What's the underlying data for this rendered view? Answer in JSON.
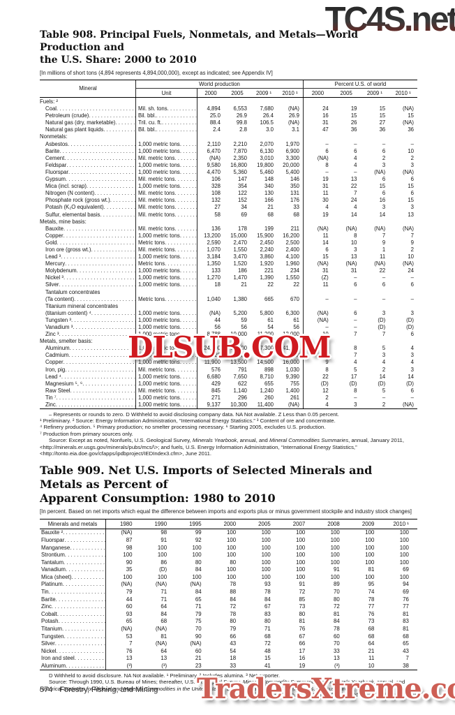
{
  "watermarks": {
    "top": "TC4S.net",
    "middle": "DLSUB.COM",
    "bottom": "TradersXtreme.com"
  },
  "table908": {
    "title_line1": "Table 908. Principal Fuels, Nonmetals, and Metals—World Production and",
    "title_line2": "the U.S. Share: 2000 to 2010",
    "note": "[In millions of short tons (4,894 represents 4,894,000,000), except as indicated; see Appendix IV]",
    "col_mineral": "Mineral",
    "col_unit": "Unit",
    "group_world": "World production",
    "group_pct": "Percent U.S. of world",
    "years": [
      "2000",
      "2005",
      "2009 ¹",
      "2010 ¹"
    ],
    "rows": [
      {
        "t": "s",
        "label": "Fuels: ²"
      },
      {
        "t": "d",
        "label": "Coal",
        "unit": "Mil. sh. tons",
        "w": [
          "4,894",
          "6,553",
          "7,680",
          "(NA)"
        ],
        "p": [
          "24",
          "19",
          "15",
          "(NA)"
        ]
      },
      {
        "t": "d",
        "label": "Petroleum (crude)",
        "unit": "Bil. bbl.",
        "w": [
          "25.0",
          "26.9",
          "26.4",
          "26.9"
        ],
        "p": [
          "16",
          "15",
          "15",
          "15"
        ]
      },
      {
        "t": "d",
        "label": "Natural gas (dry, marketable)",
        "unit": "Tril. cu. ft.",
        "w": [
          "88.4",
          "99.8",
          "106.5",
          "(NA)"
        ],
        "p": [
          "31",
          "26",
          "27",
          "(NA)"
        ]
      },
      {
        "t": "d",
        "label": "Natural gas plant liquids",
        "unit": "Bil. bbl.",
        "w": [
          "2.4",
          "2.8",
          "3.0",
          "3.1"
        ],
        "p": [
          "47",
          "36",
          "36",
          "36"
        ]
      },
      {
        "t": "s",
        "label": "Nonmetals:"
      },
      {
        "t": "d",
        "label": "Asbestos",
        "unit": "1,000 metric tons",
        "w": [
          "2,110",
          "2,210",
          "2,070",
          "1,970"
        ],
        "p": [
          "–",
          "–",
          "–",
          "–"
        ]
      },
      {
        "t": "d",
        "label": "Barite",
        "unit": "1,000 metric tons",
        "w": [
          "6,470",
          "7,870",
          "6,130",
          "6,900"
        ],
        "p": [
          "6",
          "6",
          "6",
          "10"
        ]
      },
      {
        "t": "d",
        "label": "Cement",
        "unit": "Mil. metric tons",
        "w": [
          "(NA)",
          "2,350",
          "3,010",
          "3,300"
        ],
        "p": [
          "(NA)",
          "4",
          "2",
          "2"
        ]
      },
      {
        "t": "d",
        "label": "Feldspar",
        "unit": "1,000 metric tons",
        "w": [
          "9,580",
          "16,800",
          "19,800",
          "20,000"
        ],
        "p": [
          "8",
          "4",
          "3",
          "3"
        ]
      },
      {
        "t": "d",
        "label": "Fluorspar",
        "unit": "1,000 metric tons",
        "w": [
          "4,470",
          "5,360",
          "5,460",
          "5,400"
        ],
        "p": [
          "–",
          "–",
          "(NA)",
          "(NA)"
        ]
      },
      {
        "t": "d",
        "label": "Gypsum",
        "unit": "Mil. metric tons",
        "w": [
          "106",
          "147",
          "148",
          "146"
        ],
        "p": [
          "19",
          "13",
          "6",
          "6"
        ]
      },
      {
        "t": "d",
        "label": "Mica (incl. scrap)",
        "unit": "1,000 metric tons",
        "w": [
          "328",
          "354",
          "340",
          "350"
        ],
        "p": [
          "31",
          "22",
          "15",
          "15"
        ]
      },
      {
        "t": "d",
        "label": "Nitrogen (N content)",
        "unit": "Mil. metric tons",
        "w": [
          "108",
          "122",
          "130",
          "131"
        ],
        "p": [
          "11",
          "7",
          "6",
          "6"
        ]
      },
      {
        "t": "d",
        "label": "Phosphate rock (gross wt.)",
        "unit": "Mil. metric tons",
        "w": [
          "132",
          "152",
          "166",
          "176"
        ],
        "p": [
          "30",
          "24",
          "16",
          "15"
        ]
      },
      {
        "t": "d",
        "label": "Potash (K₂O equivalent)",
        "unit": "Mil. metric tons",
        "w": [
          "27",
          "34",
          "21",
          "33"
        ],
        "p": [
          "4",
          "4",
          "3",
          "3"
        ]
      },
      {
        "t": "d",
        "label": "Sulfur, elemental basis",
        "unit": "Mil. metric tons",
        "w": [
          "58",
          "69",
          "68",
          "68"
        ],
        "p": [
          "19",
          "14",
          "14",
          "13"
        ]
      },
      {
        "t": "s",
        "label": "Metals, mine basis:"
      },
      {
        "t": "d",
        "label": "Bauxite",
        "unit": "Mil. metric tons",
        "w": [
          "136",
          "178",
          "199",
          "211"
        ],
        "p": [
          "(NA)",
          "(NA)",
          "(NA)",
          "(NA)"
        ]
      },
      {
        "t": "d",
        "label": "Copper",
        "unit": "1,000 metric tons",
        "w": [
          "13,200",
          "15,000",
          "15,900",
          "16,200"
        ],
        "p": [
          "11",
          "8",
          "7",
          "7"
        ]
      },
      {
        "t": "d",
        "label": "Gold",
        "unit": "Metric tons",
        "w": [
          "2,590",
          "2,470",
          "2,450",
          "2,500"
        ],
        "p": [
          "14",
          "10",
          "9",
          "9"
        ]
      },
      {
        "t": "d",
        "label": "Iron ore (gross wt.)",
        "unit": "Mil. metric tons",
        "w": [
          "1,070",
          "1,550",
          "2,240",
          "2,400"
        ],
        "p": [
          "6",
          "3",
          "1",
          "2"
        ]
      },
      {
        "t": "d",
        "label": "Lead ³",
        "unit": "1,000 metric tons",
        "w": [
          "3,184",
          "3,470",
          "3,860",
          "4,100"
        ],
        "p": [
          "15",
          "13",
          "11",
          "10"
        ]
      },
      {
        "t": "d",
        "label": "Mercury",
        "unit": "Metric tons",
        "w": [
          "1,350",
          "1,520",
          "1,920",
          "1,960"
        ],
        "p": [
          "(NA)",
          "(NA)",
          "(NA)",
          "(NA)"
        ]
      },
      {
        "t": "d",
        "label": "Molybdenum",
        "unit": "1,000 metric tons",
        "w": [
          "133",
          "186",
          "221",
          "234"
        ],
        "p": [
          "31",
          "31",
          "22",
          "24"
        ]
      },
      {
        "t": "d",
        "label": "Nickel ³",
        "unit": "1,000 metric tons",
        "w": [
          "1,270",
          "1,470",
          "1,390",
          "1,550"
        ],
        "p": [
          "(Z)",
          "–",
          "–",
          "–"
        ]
      },
      {
        "t": "d",
        "label": "Silver",
        "unit": "1,000 metric tons",
        "w": [
          "18",
          "21",
          "22",
          "22"
        ],
        "p": [
          "11",
          "6",
          "6",
          "6"
        ]
      },
      {
        "t": "l",
        "label": "Tantalum concentrates"
      },
      {
        "t": "d",
        "label": "(Ta content)",
        "unit": "Metric tons",
        "w": [
          "1,040",
          "1,380",
          "665",
          "670"
        ],
        "p": [
          "–",
          "–",
          "–",
          "–"
        ]
      },
      {
        "t": "l",
        "label": "Titanium mineral concentrates"
      },
      {
        "t": "d",
        "label": "(titanium content) ⁴",
        "unit": "1,000 metric tons",
        "w": [
          "(NA)",
          "5,200",
          "5,800",
          "6,300"
        ],
        "p": [
          "(NA)",
          "6",
          "3",
          "3"
        ]
      },
      {
        "t": "d",
        "label": "Tungsten ³",
        "unit": "1,000 metric tons",
        "w": [
          "44",
          "59",
          "61",
          "61"
        ],
        "p": [
          "(NA)",
          "–",
          "(D)",
          "(D)"
        ]
      },
      {
        "t": "d",
        "label": "Vanadium ³",
        "unit": "1,000 metric tons",
        "w": [
          "56",
          "56",
          "54",
          "56"
        ],
        "p": [
          "–",
          "–",
          "(D)",
          "(D)"
        ]
      },
      {
        "t": "d",
        "label": "Zinc ³",
        "unit": "1,000 metric tons",
        "w": [
          "8,788",
          "10,000",
          "11,200",
          "12,000"
        ],
        "p": [
          "10",
          "7",
          "7",
          "6"
        ]
      },
      {
        "t": "s",
        "label": "Metals, smelter basis:"
      },
      {
        "t": "d",
        "label": "Aluminum",
        "unit": "1,000 metric tons",
        "w": [
          "24,400",
          "31,900",
          "37,300",
          "41,400"
        ],
        "p": [
          "15",
          "8",
          "5",
          "4"
        ]
      },
      {
        "t": "d",
        "label": "Cadmium",
        "unit": "1,000 metric tons",
        "w": [
          "20",
          "20",
          "19",
          "22"
        ],
        "p": [
          "10",
          "7",
          "3",
          "3"
        ]
      },
      {
        "t": "d",
        "label": "Copper",
        "unit": "1,000 metric tons",
        "w": [
          "11,900",
          "13,500",
          "14,500",
          "16,000"
        ],
        "p": [
          "9",
          "4",
          "4",
          "4"
        ]
      },
      {
        "t": "d",
        "label": "Iron, pig",
        "unit": "Mil. metric tons",
        "w": [
          "576",
          "791",
          "898",
          "1,030"
        ],
        "p": [
          "8",
          "5",
          "2",
          "3"
        ]
      },
      {
        "t": "d",
        "label": "Lead ⁴",
        "unit": "1,000 metric tons",
        "w": [
          "6,680",
          "7,650",
          "8,710",
          "9,390"
        ],
        "p": [
          "22",
          "17",
          "14",
          "14"
        ]
      },
      {
        "t": "d",
        "label": "Magnesium ⁵, ⁶",
        "unit": "1,000 metric tons",
        "w": [
          "429",
          "622",
          "655",
          "755"
        ],
        "p": [
          "(D)",
          "(D)",
          "(D)",
          "(D)"
        ]
      },
      {
        "t": "d",
        "label": "Raw Steel",
        "unit": "Mil. metric tons",
        "w": [
          "845",
          "1,140",
          "1,240",
          "1,400"
        ],
        "p": [
          "12",
          "8",
          "5",
          "6"
        ]
      },
      {
        "t": "d",
        "label": "Tin ⁷",
        "unit": "1,000 metric tons",
        "w": [
          "271",
          "296",
          "260",
          "261"
        ],
        "p": [
          "2",
          "–",
          "–",
          "–"
        ]
      },
      {
        "t": "d",
        "label": "Zinc",
        "unit": "1,000 metric tons",
        "w": [
          "9,137",
          "10,300",
          "11,400",
          "(NA)"
        ],
        "p": [
          "4",
          "3",
          "2",
          "(NA)"
        ]
      }
    ],
    "footnotes": [
      {
        "t": "– Represents or rounds to zero. D Withheld to avoid disclosing company data. NA Not available. Z Less than 0.05 percent.",
        "ind": true
      },
      {
        "t": "¹ Preliminary. ² Source: Energy Information Administration, “International Energy Statistics.” ³ Content of ore and concentrate.",
        "ind": false
      },
      {
        "t": "⁴ Refinery production. ⁵ Primary production; no smelter processing necessary. ⁶ Starting 2005, excludes U.S. production.",
        "ind": false
      },
      {
        "t": "⁷ Production from primary sources only.",
        "ind": false
      }
    ],
    "source_segments": [
      {
        "t": "Source: Except as noted, Nonfuels, U.S. Geological Survey, "
      },
      {
        "t": "Minerals Yearbook",
        "i": true
      },
      {
        "t": ", annual, and "
      },
      {
        "t": "Mineral Commodities Summaries",
        "i": true
      },
      {
        "t": ", annual, January 2011, <http://minerals.er.usgs.gov/minerals/pubs/mcs/\\>; and fuels, U.S. Energy Information Administration, “International Energy Statistics,” <http://tonto.eia.doe.gov/cfapps/ipdbproject/IEDIndex3.cfm>, June 2011."
      }
    ]
  },
  "table909": {
    "title_line1": "Table 909. Net U.S. Imports of Selected Minerals and Metals as Percent of",
    "title_line2": "Apparent Consumption: 1980 to 2010",
    "note": "[In percent. Based on net imports which equal  the difference between imports and exports plus or minus government stockpile and industry stock changes]",
    "col_name": "Minerals and metals",
    "years": [
      "1980",
      "1990",
      "1995",
      "2000",
      "2005",
      "2007",
      "2008",
      "2009",
      "2010 ¹"
    ],
    "rows": [
      {
        "label": "Bauxite ²",
        "v": [
          "(NA)",
          "98",
          "99",
          "100",
          "100",
          "100",
          "100",
          "100",
          "100"
        ]
      },
      {
        "label": "Fluorspar",
        "v": [
          "87",
          "91",
          "92",
          "100",
          "100",
          "100",
          "100",
          "100",
          "100"
        ]
      },
      {
        "label": "Manganese",
        "v": [
          "98",
          "100",
          "100",
          "100",
          "100",
          "100",
          "100",
          "100",
          "100"
        ]
      },
      {
        "label": "Strontium",
        "v": [
          "100",
          "100",
          "100",
          "100",
          "100",
          "100",
          "100",
          "100",
          "100"
        ]
      },
      {
        "label": "Tantalum",
        "v": [
          "90",
          "86",
          "80",
          "80",
          "100",
          "100",
          "100",
          "100",
          "100"
        ]
      },
      {
        "label": "Vanadium",
        "v": [
          "35",
          "(D)",
          "84",
          "100",
          "100",
          "100",
          "91",
          "81",
          "69"
        ]
      },
      {
        "label": "Mica (sheet)",
        "v": [
          "100",
          "100",
          "100",
          "100",
          "100",
          "100",
          "100",
          "100",
          "100"
        ]
      },
      {
        "label": "Platinum",
        "v": [
          "(NA)",
          "(NA)",
          "(NA)",
          "78",
          "93",
          "91",
          "89",
          "95",
          "94"
        ]
      },
      {
        "label": "Tin",
        "v": [
          "79",
          "71",
          "84",
          "88",
          "78",
          "72",
          "70",
          "74",
          "69"
        ]
      },
      {
        "label": "Barite",
        "v": [
          "44",
          "71",
          "65",
          "84",
          "84",
          "85",
          "80",
          "78",
          "76"
        ]
      },
      {
        "label": "Zinc",
        "v": [
          "60",
          "64",
          "71",
          "72",
          "67",
          "73",
          "72",
          "77",
          "77"
        ]
      },
      {
        "label": "Cobalt",
        "v": [
          "93",
          "84",
          "79",
          "78",
          "83",
          "80",
          "81",
          "76",
          "81"
        ]
      },
      {
        "label": "Potash",
        "v": [
          "65",
          "68",
          "75",
          "80",
          "80",
          "81",
          "84",
          "73",
          "83"
        ]
      },
      {
        "label": "Titanium",
        "v": [
          "(NA)",
          "(NA)",
          "70",
          "79",
          "71",
          "76",
          "78",
          "68",
          "81"
        ]
      },
      {
        "label": "Tungsten",
        "v": [
          "53",
          "81",
          "90",
          "66",
          "68",
          "67",
          "60",
          "68",
          "68"
        ]
      },
      {
        "label": "Silver",
        "v": [
          "7",
          "(NA)",
          "(NA)",
          "43",
          "72",
          "66",
          "70",
          "64",
          "65"
        ]
      },
      {
        "label": "Nickel",
        "v": [
          "76",
          "64",
          "60",
          "54",
          "48",
          "17",
          "33",
          "21",
          "43"
        ]
      },
      {
        "label": "Iron and steel",
        "v": [
          "13",
          "13",
          "21",
          "18",
          "15",
          "16",
          "13",
          "11",
          "7"
        ]
      },
      {
        "label": "Aluminum",
        "v": [
          "(³)",
          "(³)",
          "23",
          "33",
          "41",
          "19",
          "(³)",
          "10",
          "38"
        ]
      }
    ],
    "footnotes": [
      {
        "t": "D Withheld to avoid disclosure. NA Not available. ¹ Preliminary. ² Includes alumina. ³ Net exporter.",
        "ind": true
      }
    ],
    "source_segments": [
      {
        "t": "Source: Through 1990, U.S. Bureau of Mines; thereafter, U.S. Geological Survey, "
      },
      {
        "t": "Mineral Commodity Summaries",
        "i": true
      },
      {
        "t": " and "
      },
      {
        "t": "Minerals Yearbook",
        "i": true
      },
      {
        "t": ", annual, and "
      },
      {
        "t": "Historical Statistics for Mineral and Material Commodities in the United States",
        "i": true
      },
      {
        "t": "; and import and export data from U.S. Census Bureau."
      }
    ]
  },
  "footer": {
    "page_number": "574",
    "section": "Forestry, Fishing, and Mining",
    "credit": "U.S. Census Bureau, Statistical Abstract of the United States: 2012"
  }
}
